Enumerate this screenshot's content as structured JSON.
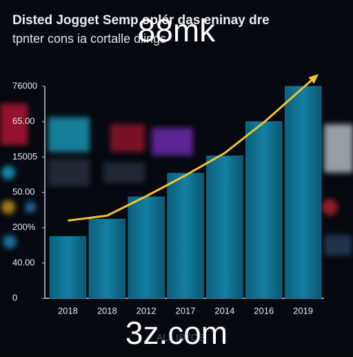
{
  "chart_data": {
    "type": "bar",
    "title": "Disted Jogget Semp oplér das eninay dre",
    "subtitle": "tpnter cons ia cortalle dlings",
    "watermarks": [
      "88mk",
      "3z.com"
    ],
    "footer": "ALL ISTOS",
    "categories": [
      "2018",
      "2018",
      "2012",
      "2017",
      "2014",
      "2016",
      "2019"
    ],
    "values": [
      1.75,
      2.24,
      2.87,
      3.54,
      4.03,
      5.0,
      6.0
    ],
    "color": "#0f6f8f",
    "line": {
      "color": "#f2c230",
      "values": [
        2.2,
        2.34,
        2.89,
        3.48,
        4.11,
        4.98,
        5.96
      ]
    },
    "ylim": [
      0,
      6
    ],
    "yticks": [
      {
        "value": 0,
        "label": "0"
      },
      {
        "value": 1,
        "label": "40.00"
      },
      {
        "value": 2,
        "label": "200%"
      },
      {
        "value": 3,
        "label": "50.00"
      },
      {
        "value": 4,
        "label": "15005"
      },
      {
        "value": 5,
        "label": "65.00"
      },
      {
        "value": 6,
        "label": "76000"
      }
    ],
    "grid": false
  }
}
